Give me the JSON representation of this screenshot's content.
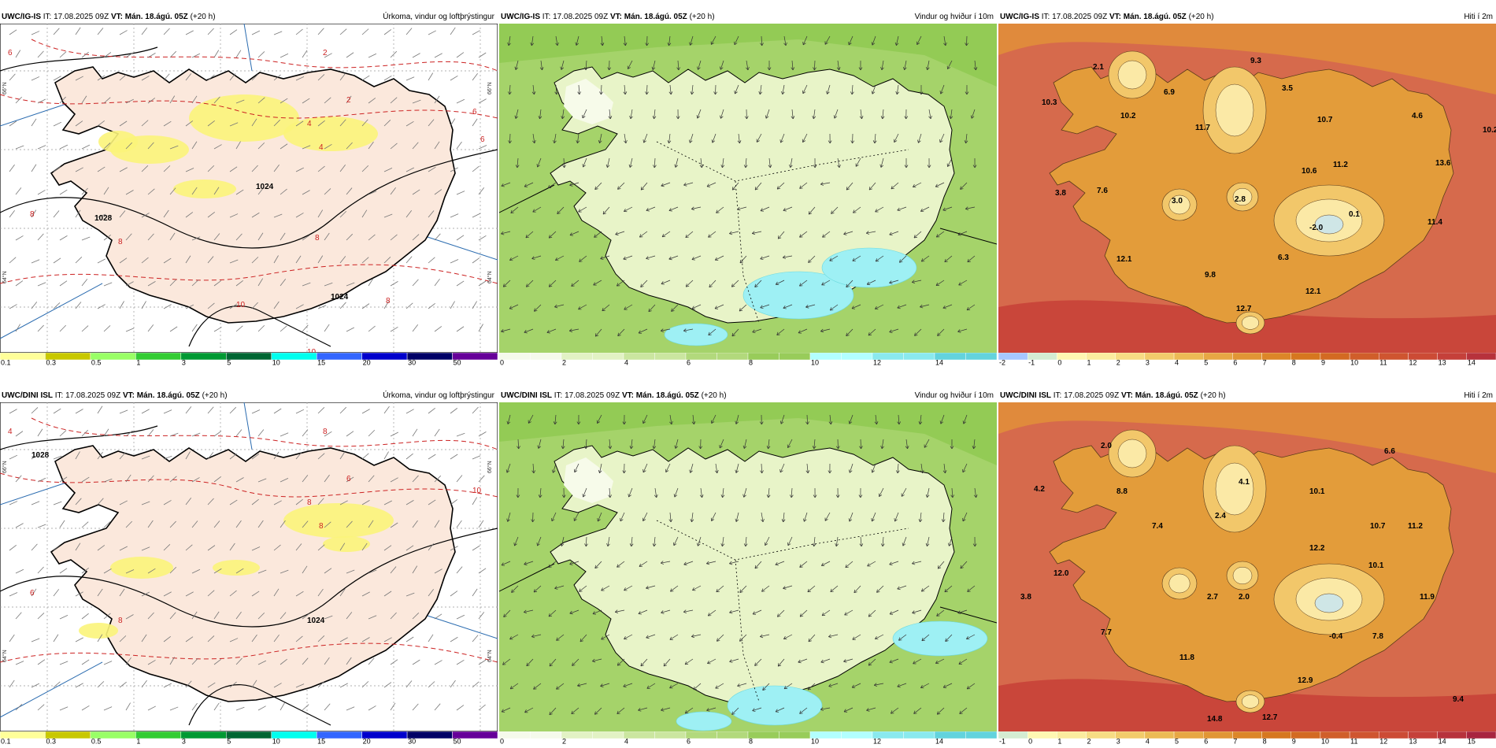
{
  "panels": [
    {
      "id": "p1",
      "model": "UWC/IG-IS",
      "it_label": "IT:",
      "it": "17.08.2025 09Z",
      "vt_label": "VT:",
      "vt": "Mán. 18.ágú. 05Z",
      "lead": "(+20 h)",
      "title": "Úrkoma, vindur og loftþrýstingur",
      "type": "precip",
      "legend": [
        "0.1",
        "0.3",
        "0.5",
        "1",
        "3",
        "5",
        "10",
        "15",
        "20",
        "30",
        "50"
      ],
      "pressure_labels": [
        "1028",
        "1024",
        "1024"
      ],
      "iso_labels": [
        "6",
        "8",
        "8",
        "2",
        "2",
        "4",
        "4",
        "6",
        "6",
        "8",
        "10",
        "10",
        "10",
        "8"
      ],
      "lat_labels": [
        "66°N",
        "66°N",
        "64°N",
        "64°N"
      ]
    },
    {
      "id": "p2",
      "model": "UWC/IG-IS",
      "it_label": "IT:",
      "it": "17.08.2025 09Z",
      "vt_label": "VT:",
      "vt": "Mán. 18.ágú. 05Z",
      "lead": "(+20 h)",
      "title": "Vindur og hviður í 10m",
      "type": "wind",
      "legend": [
        "0",
        "2",
        "4",
        "6",
        "8",
        "10",
        "12",
        "14"
      ]
    },
    {
      "id": "p3",
      "model": "UWC/IG-IS",
      "it_label": "IT:",
      "it": "17.08.2025 09Z",
      "vt_label": "VT:",
      "vt": "Mán. 18.ágú. 05Z",
      "lead": "(+20 h)",
      "title": "Hiti í 2m",
      "type": "temp",
      "legend": [
        "-2",
        "-1",
        "0",
        "1",
        "2",
        "3",
        "4",
        "5",
        "6",
        "7",
        "8",
        "9",
        "10",
        "11",
        "12",
        "13",
        "14"
      ],
      "values": [
        "2.1",
        "9.3",
        "10.3",
        "6.9",
        "3.5",
        "10.2",
        "11.7",
        "10.7",
        "4.6",
        "10.2",
        "13.6",
        "11.2",
        "10.6",
        "3.8",
        "7.6",
        "3.0",
        "2.8",
        "0.1",
        "11.4",
        "-2.0",
        "6.3",
        "12.1",
        "9.8",
        "12.1",
        "12.7"
      ]
    },
    {
      "id": "p4",
      "model": "UWC/DINI ISL",
      "it_label": "IT:",
      "it": "17.08.2025 09Z",
      "vt_label": "VT:",
      "vt": "Mán. 18.ágú. 05Z",
      "lead": "(+20 h)",
      "title": "Úrkoma, vindur og loftþrýstingur",
      "type": "precip",
      "legend": [
        "0.1",
        "0.3",
        "0.5",
        "1",
        "3",
        "5",
        "10",
        "15",
        "20",
        "30",
        "50"
      ],
      "pressure_labels": [
        "1028",
        "1024"
      ],
      "iso_labels": [
        "4",
        "6",
        "8",
        "8",
        "6",
        "8",
        "8",
        "10"
      ],
      "lat_labels": [
        "66°N",
        "66°N",
        "64°N",
        "64°N"
      ]
    },
    {
      "id": "p5",
      "model": "UWC/DINI ISL",
      "it_label": "IT:",
      "it": "17.08.2025 09Z",
      "vt_label": "VT:",
      "vt": "Mán. 18.ágú. 05Z",
      "lead": "(+20 h)",
      "title": "Vindur og hviður í 10m",
      "type": "wind",
      "legend": [
        "0",
        "2",
        "4",
        "6",
        "8",
        "10",
        "12",
        "14"
      ]
    },
    {
      "id": "p6",
      "model": "UWC/DINI ISL",
      "it_label": "IT:",
      "it": "17.08.2025 09Z",
      "vt_label": "VT:",
      "vt": "Mán. 18.ágú. 05Z",
      "lead": "(+20 h)",
      "title": "Hiti í 2m",
      "type": "temp",
      "legend": [
        "-1",
        "0",
        "1",
        "2",
        "3",
        "4",
        "5",
        "6",
        "7",
        "8",
        "9",
        "10",
        "11",
        "12",
        "13",
        "14",
        "15"
      ],
      "values": [
        "2.0",
        "6.6",
        "4.2",
        "8.8",
        "4.1",
        "10.1",
        "2.4",
        "7.4",
        "10.7",
        "11.2",
        "12.2",
        "10.1",
        "12.0",
        "3.8",
        "2.7",
        "2.0",
        "11.9",
        "7.7",
        "-0.4",
        "7.8",
        "11.8",
        "12.9",
        "9.4",
        "14.8",
        "12.7"
      ]
    }
  ],
  "colors": {
    "precip_legend": [
      "#ffff99",
      "#c8c800",
      "#99ff66",
      "#33cc33",
      "#009933",
      "#006633",
      "#00ffee",
      "#3366ff",
      "#0000cc",
      "#000066",
      "#660099",
      "#cc0099",
      "#ff0000"
    ],
    "wind_legend": [
      "#f5faeb",
      "#e2f2c4",
      "#cbe6a0",
      "#b2d97c",
      "#98cc5a",
      "#b2ffff",
      "#8ae9ee",
      "#63d3dd",
      "#3bbdcc"
    ],
    "temp_legend": [
      "#a6c8ff",
      "#d4ecd2",
      "#fff7b2",
      "#fbec9f",
      "#f7dc84",
      "#f2cb6b",
      "#ecba55",
      "#e7a744",
      "#e19635",
      "#dc8628",
      "#d6771f",
      "#d36a22",
      "#d05e2a",
      "#cf5530",
      "#cc4b35",
      "#c5403a",
      "#b7323c",
      "#a8243f"
    ],
    "land_precip": "#fbe8dc",
    "iso_red": "#cc2222"
  }
}
